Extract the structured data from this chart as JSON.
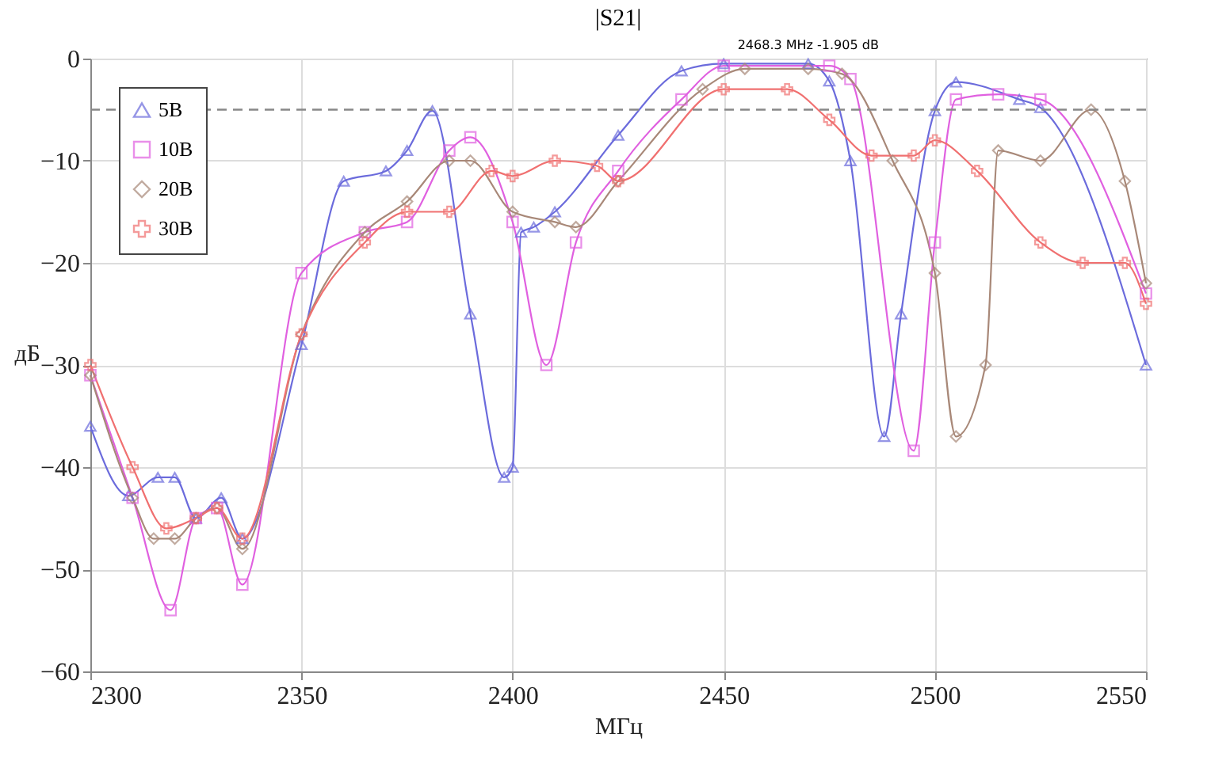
{
  "chart_data": {
    "type": "line",
    "title": "|S21|",
    "xlabel": "МГц",
    "ylabel": "дБ",
    "xlim": [
      2300,
      2550
    ],
    "ylim": [
      -60,
      0
    ],
    "xticks": [
      2300,
      2350,
      2400,
      2450,
      2500,
      2550
    ],
    "yticks": [
      -60,
      -50,
      -40,
      -30,
      -20,
      -10,
      0
    ],
    "grid": true,
    "legend": "top left",
    "ref_lines": [
      {
        "axis": "y",
        "value": -5,
        "color": "#888888",
        "line_style": "dashed"
      }
    ],
    "annotations": [
      "2468.3 MHz -1.905 dB"
    ],
    "series": [
      {
        "name": "5B",
        "color": "#6b6bdc",
        "marker": "triangle",
        "x": [
          2300,
          2309,
          2316,
          2320,
          2325,
          2331,
          2336,
          2350,
          2360,
          2370,
          2375,
          2381,
          2390,
          2398,
          2400,
          2402,
          2405,
          2410,
          2425,
          2440,
          2450,
          2470,
          2475,
          2480,
          2488,
          2492,
          2500,
          2505,
          2520,
          2525,
          2550
        ],
        "values": [
          -36,
          -42.8,
          -41,
          -41,
          -45,
          -43,
          -47,
          -28,
          -12,
          -11,
          -9,
          -5.1,
          -25,
          -41,
          -40,
          -17,
          -16.5,
          -15,
          -7.5,
          -1.2,
          -0.5,
          -0.5,
          -2.2,
          -10,
          -37,
          -25,
          -5.1,
          -2.3,
          -4,
          -4.8,
          -30
        ]
      },
      {
        "name": "10B",
        "color": "#e060e0",
        "marker": "square",
        "x": [
          2300,
          2310,
          2319,
          2325,
          2330,
          2336,
          2350,
          2365,
          2375,
          2385,
          2390,
          2400,
          2408,
          2415,
          2425,
          2440,
          2450,
          2475,
          2480,
          2495,
          2500,
          2505,
          2515,
          2525,
          2550
        ],
        "values": [
          -31,
          -43,
          -54,
          -45,
          -44,
          -51.5,
          -21,
          -17,
          -16,
          -9,
          -7.7,
          -16,
          -30,
          -18,
          -11,
          -4,
          -0.7,
          -0.7,
          -2,
          -38.4,
          -18,
          -4,
          -3.5,
          -4,
          -23
        ]
      },
      {
        "name": "20B",
        "color": "#a88878",
        "marker": "diamond",
        "x": [
          2300,
          2310,
          2315,
          2320,
          2325,
          2330,
          2336,
          2350,
          2365,
          2375,
          2385,
          2390,
          2400,
          2410,
          2415,
          2425,
          2445,
          2455,
          2470,
          2478,
          2490,
          2500,
          2505,
          2512,
          2515,
          2525,
          2537,
          2545,
          2550
        ],
        "values": [
          -31,
          -43,
          -47,
          -47,
          -45,
          -44,
          -48,
          -27,
          -17,
          -14,
          -10,
          -10,
          -15,
          -16,
          -16.5,
          -12,
          -3,
          -1,
          -1,
          -1.5,
          -10,
          -21,
          -37,
          -30,
          -9,
          -10,
          -5,
          -12,
          -22
        ]
      },
      {
        "name": "30B",
        "color": "#f07070",
        "marker": "cross",
        "x": [
          2300,
          2310,
          2318,
          2325,
          2330,
          2336,
          2350,
          2365,
          2375,
          2385,
          2395,
          2400,
          2410,
          2420,
          2425,
          2450,
          2465,
          2475,
          2485,
          2495,
          2500,
          2510,
          2525,
          2535,
          2545,
          2550
        ],
        "values": [
          -30,
          -40,
          -46,
          -45,
          -44,
          -47,
          -27,
          -18,
          -15,
          -15,
          -11,
          -11.5,
          -10,
          -10.5,
          -12,
          -3,
          -3,
          -6,
          -9.5,
          -9.5,
          -8,
          -11,
          -18,
          -20,
          -20,
          -24
        ]
      }
    ]
  }
}
